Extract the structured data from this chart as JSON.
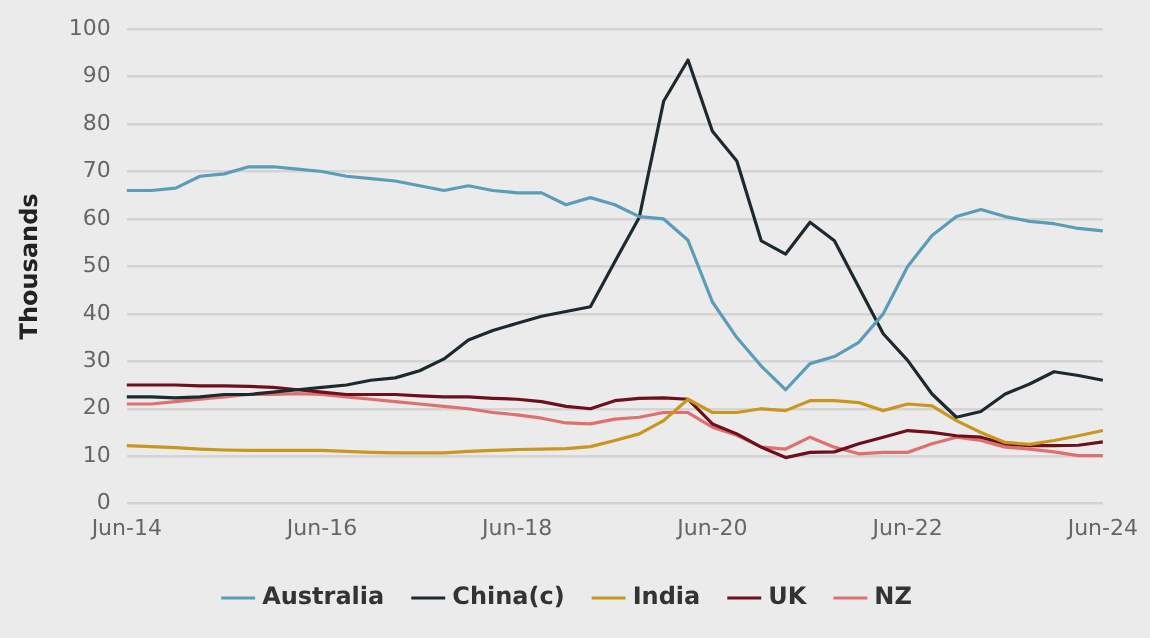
{
  "chart_data": {
    "type": "line",
    "ylabel": "Thousands",
    "categories": [
      "Jun-14",
      null,
      null,
      null,
      null,
      null,
      null,
      null,
      "Jun-16",
      null,
      null,
      null,
      null,
      null,
      null,
      null,
      "Jun-18",
      null,
      null,
      null,
      null,
      null,
      null,
      null,
      "Jun-20",
      null,
      null,
      null,
      null,
      null,
      null,
      null,
      "Jun-22",
      null,
      null,
      null,
      null,
      null,
      null,
      null,
      "Jun-24"
    ],
    "series": [
      {
        "name": "Australia",
        "color": "#5b9cb8",
        "values": [
          66,
          66,
          66.5,
          69,
          69.5,
          71,
          71,
          70.5,
          70,
          69,
          68.5,
          68,
          67,
          66,
          67,
          66,
          65.5,
          65.5,
          63,
          64.5,
          63,
          60.5,
          60,
          55.5,
          42.5,
          35,
          29,
          24,
          29.5,
          31,
          34,
          40,
          50,
          56.5,
          60.5,
          62,
          60.5,
          59.5,
          59,
          58,
          57.5
        ]
      },
      {
        "name": "China(c)",
        "color": "#1c2a30",
        "values": [
          22.5,
          22.5,
          22.3,
          22.5,
          23,
          23,
          23.5,
          24,
          24.5,
          25,
          26,
          26.5,
          28,
          30.5,
          34.5,
          36.5,
          38,
          39.5,
          40.5,
          41.5,
          51,
          60.3,
          84.8,
          93.5,
          78.5,
          72.2,
          55.4,
          52.6,
          59.3,
          55.4,
          45.6,
          35.8,
          30.2,
          23.1,
          18.2,
          19.4,
          23.1,
          25.2,
          27.8,
          27,
          26
        ]
      },
      {
        "name": "India",
        "color": "#c9961e",
        "values": [
          12.2,
          12,
          11.8,
          11.5,
          11.3,
          11.2,
          11.2,
          11.2,
          11.2,
          11,
          10.8,
          10.7,
          10.7,
          10.7,
          11,
          11.2,
          11.4,
          11.5,
          11.6,
          12,
          13.3,
          14.7,
          17.5,
          22,
          19.2,
          19.2,
          20,
          19.6,
          21.7,
          21.7,
          21.3,
          19.6,
          21,
          20.6,
          17.5,
          15,
          12.9,
          12.5,
          13.3,
          14.3,
          15.4
        ]
      },
      {
        "name": "UK",
        "color": "#6e0f1c",
        "values": [
          25,
          25,
          25,
          24.8,
          24.8,
          24.7,
          24.5,
          24,
          23.5,
          23,
          23,
          23,
          22.7,
          22.5,
          22.5,
          22.2,
          22,
          21.5,
          20.5,
          20,
          21.7,
          22.2,
          22.3,
          22,
          16.8,
          14.7,
          11.9,
          9.7,
          10.8,
          10.9,
          12.6,
          14,
          15.4,
          15,
          14.3,
          14,
          12.6,
          12.2,
          12.2,
          12.3,
          13
        ]
      },
      {
        "name": "NZ",
        "color": "#df7070",
        "values": [
          21,
          21,
          21.5,
          22,
          22.5,
          23,
          23,
          23.2,
          23,
          22.5,
          22,
          21.5,
          21,
          20.5,
          20,
          19.2,
          18.7,
          18,
          17,
          16.8,
          17.8,
          18.2,
          19.2,
          19.2,
          16.1,
          14.4,
          11.9,
          11.5,
          14,
          11.9,
          10.5,
          10.8,
          10.8,
          12.6,
          14,
          13.3,
          11.9,
          11.5,
          10.9,
          10.1,
          10.1
        ]
      }
    ],
    "ylim": [
      0,
      100
    ],
    "yticks": [
      0,
      10,
      20,
      30,
      40,
      50,
      60,
      70,
      80,
      90,
      100
    ],
    "grid": "y",
    "legend": "bottom",
    "marker": "none",
    "line_style": "solid"
  }
}
